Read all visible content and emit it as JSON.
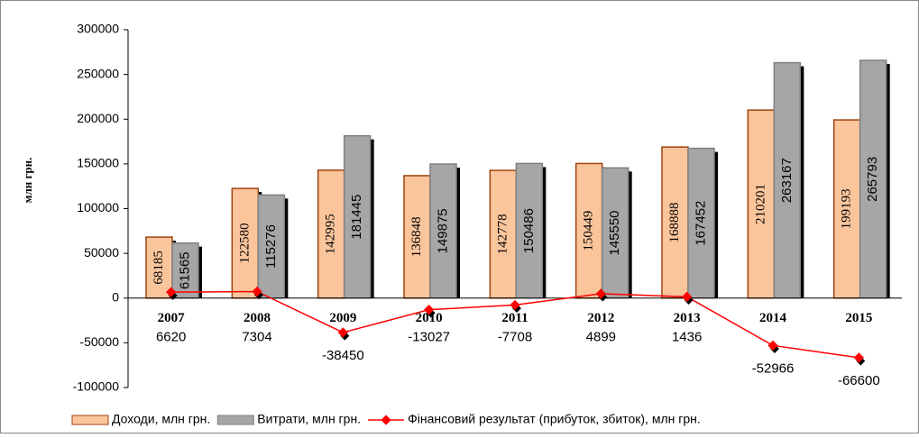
{
  "chart_data": {
    "type": "bar_line",
    "y_axis_label": "млн грн.",
    "categories": [
      "2007",
      "2008",
      "2009",
      "2010",
      "2011",
      "2012",
      "2013",
      "2014",
      "2015"
    ],
    "series": [
      {
        "name": "Доходи, млн грн.",
        "type": "bar",
        "color": "#fbc59c",
        "values": [
          68185,
          122580,
          142995,
          136848,
          142778,
          150449,
          168888,
          210201,
          199193
        ]
      },
      {
        "name": "Витрати, млн грн.",
        "type": "bar",
        "color": "#a6a6a6",
        "values": [
          61565,
          115276,
          181445,
          149875,
          150486,
          145550,
          167452,
          263167,
          265793
        ]
      },
      {
        "name": "Фінансовий результат (прибуток, збиток), млн грн.",
        "type": "line",
        "color": "#ff0000",
        "values": [
          6620,
          7304,
          -38450,
          -13027,
          -7708,
          4899,
          1436,
          -52966,
          -66600
        ]
      }
    ],
    "ylim": [
      -100000,
      300000
    ],
    "yticks": [
      -100000,
      -50000,
      0,
      50000,
      100000,
      150000,
      200000,
      250000,
      300000
    ],
    "grid": false
  }
}
